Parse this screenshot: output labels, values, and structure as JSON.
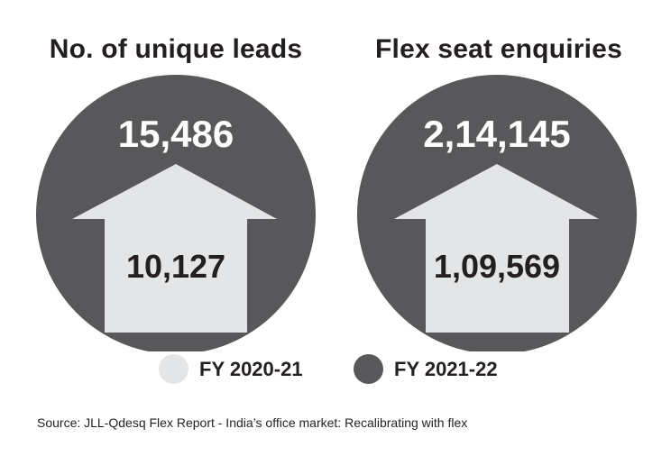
{
  "chart_data": [
    {
      "type": "infographic",
      "title": "No. of unique leads",
      "series": [
        {
          "name": "FY 2020-21",
          "value": 10127,
          "label": "10,127"
        },
        {
          "name": "FY 2021-22",
          "value": 15486,
          "label": "15,486"
        }
      ]
    },
    {
      "type": "infographic",
      "title": "Flex seat enquiries",
      "series": [
        {
          "name": "FY 2020-21",
          "value": 109569,
          "label": "1,09,569"
        },
        {
          "name": "FY 2021-22",
          "value": 214145,
          "label": "2,14,145"
        }
      ]
    }
  ],
  "legend": [
    {
      "label": "FY 2020-21",
      "color": "#e4e5e6"
    },
    {
      "label": "FY 2021-22",
      "color": "#58585b"
    }
  ],
  "colors": {
    "circle": "#58585b",
    "arrow": "#e4e5e6",
    "text_light": "#ffffff",
    "text_dark": "#231f20"
  },
  "source": "Source: JLL-Qdesq Flex Report - India’s office market: Recalibrating with flex"
}
